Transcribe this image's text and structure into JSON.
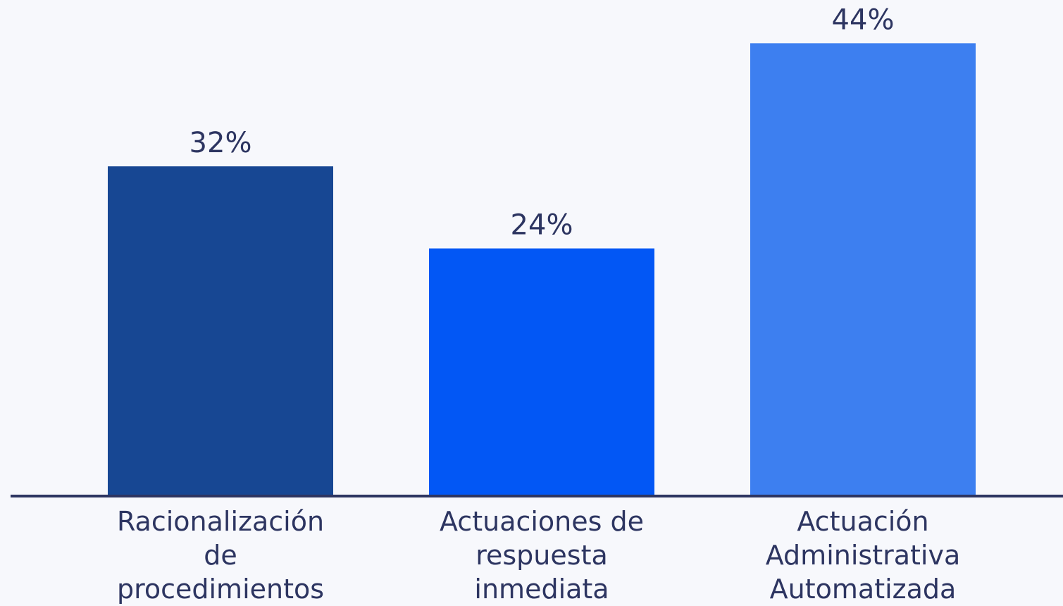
{
  "chart_data": {
    "type": "bar",
    "categories": [
      "Racionalización de procedimientos",
      "Actuaciones de respuesta inmediata",
      "Actuación Administrativa Automatizada"
    ],
    "values": [
      32,
      24,
      44
    ],
    "value_labels": [
      "32%",
      "24%",
      "44%"
    ],
    "colors": [
      "#174793",
      "#0257f5",
      "#3d7ff0"
    ]
  }
}
